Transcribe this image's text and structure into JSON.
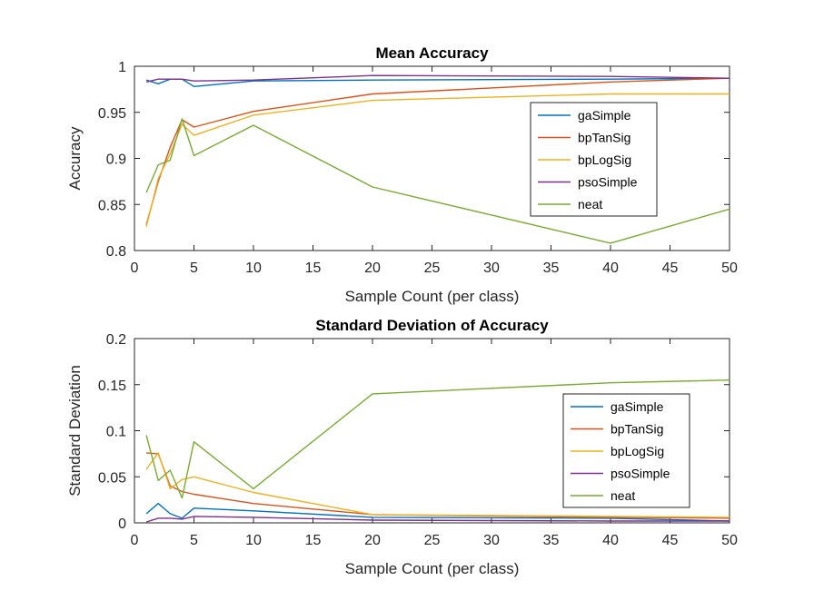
{
  "chart_data": [
    {
      "type": "line",
      "title": "Mean Accuracy",
      "xlabel": "Sample Count (per class)",
      "ylabel": "Accuracy",
      "xlim": [
        0,
        50
      ],
      "ylim": [
        0.8,
        1
      ],
      "xticks": [
        0,
        5,
        10,
        15,
        20,
        25,
        30,
        35,
        40,
        45,
        50
      ],
      "xtick_labels": [
        "0",
        "5",
        "10",
        "15",
        "20",
        "25",
        "30",
        "35",
        "40",
        "45",
        "50"
      ],
      "yticks": [
        0.8,
        0.85,
        0.9,
        0.95,
        1
      ],
      "ytick_labels": [
        "0.8",
        "0.85",
        "0.9",
        "0.95",
        "1"
      ],
      "grid": false,
      "legend_position": "right",
      "x": [
        1,
        2,
        3,
        4,
        5,
        10,
        20,
        40,
        50
      ],
      "series": [
        {
          "name": "gaSimple",
          "color": "#0072BD",
          "values": [
            0.985,
            0.981,
            0.986,
            0.986,
            0.978,
            0.984,
            0.985,
            0.986,
            0.987
          ]
        },
        {
          "name": "bpTanSig",
          "color": "#D95319",
          "values": [
            0.828,
            0.875,
            0.912,
            0.942,
            0.934,
            0.951,
            0.97,
            0.983,
            0.987
          ]
        },
        {
          "name": "bpLogSig",
          "color": "#EDB120",
          "values": [
            0.826,
            0.878,
            0.905,
            0.937,
            0.925,
            0.947,
            0.963,
            0.97,
            0.97
          ]
        },
        {
          "name": "psoSimple",
          "color": "#7E2F8E",
          "values": [
            0.983,
            0.986,
            0.986,
            0.986,
            0.984,
            0.985,
            0.99,
            0.989,
            0.987
          ]
        },
        {
          "name": "neat",
          "color": "#77AC30",
          "values": [
            0.863,
            0.893,
            0.898,
            0.943,
            0.903,
            0.936,
            0.869,
            0.808,
            0.845
          ]
        }
      ]
    },
    {
      "type": "line",
      "title": "Standard Deviation of Accuracy",
      "xlabel": "Sample Count (per class)",
      "ylabel": "Standard Deviation",
      "xlim": [
        0,
        50
      ],
      "ylim": [
        0,
        0.2
      ],
      "xticks": [
        0,
        5,
        10,
        15,
        20,
        25,
        30,
        35,
        40,
        45,
        50
      ],
      "xtick_labels": [
        "0",
        "5",
        "10",
        "15",
        "20",
        "25",
        "30",
        "35",
        "40",
        "45",
        "50"
      ],
      "yticks": [
        0,
        0.05,
        0.1,
        0.15,
        0.2
      ],
      "ytick_labels": [
        "0",
        "0.05",
        "0.1",
        "0.15",
        "0.2"
      ],
      "grid": false,
      "legend_position": "right",
      "x": [
        1,
        2,
        3,
        4,
        5,
        10,
        20,
        40,
        50
      ],
      "series": [
        {
          "name": "gaSimple",
          "color": "#0072BD",
          "values": [
            0.01,
            0.021,
            0.01,
            0.005,
            0.016,
            0.013,
            0.006,
            0.005,
            0.002
          ]
        },
        {
          "name": "bpTanSig",
          "color": "#D95319",
          "values": [
            0.076,
            0.075,
            0.04,
            0.034,
            0.031,
            0.021,
            0.009,
            0.006,
            0.005
          ]
        },
        {
          "name": "bpLogSig",
          "color": "#EDB120",
          "values": [
            0.058,
            0.076,
            0.037,
            0.047,
            0.05,
            0.033,
            0.009,
            0.007,
            0.006
          ]
        },
        {
          "name": "psoSimple",
          "color": "#7E2F8E",
          "values": [
            0.001,
            0.005,
            0.005,
            0.004,
            0.007,
            0.006,
            0.003,
            0.002,
            0.002
          ]
        },
        {
          "name": "neat",
          "color": "#77AC30",
          "values": [
            0.095,
            0.046,
            0.057,
            0.027,
            0.088,
            0.037,
            0.14,
            0.152,
            0.155
          ]
        }
      ]
    }
  ]
}
